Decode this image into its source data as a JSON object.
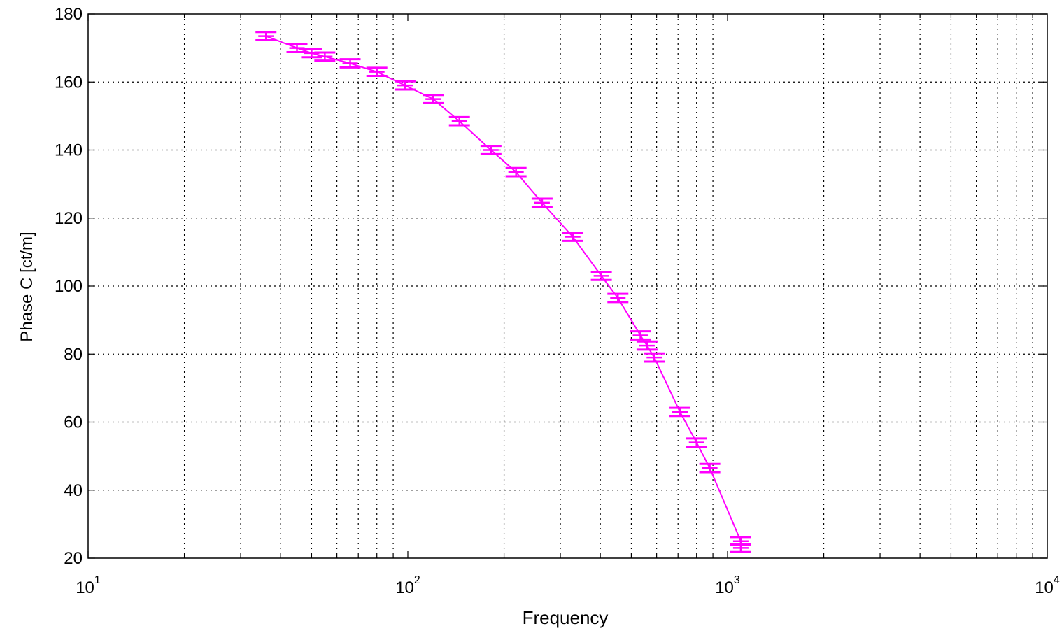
{
  "chart_data": {
    "type": "line",
    "title": "",
    "xlabel": "Frequency",
    "ylabel": "Phase C [ct/m]",
    "x_scale": "log",
    "xlim": [
      10,
      10000
    ],
    "ylim": [
      20,
      180
    ],
    "grid": true,
    "x_ticks": [
      {
        "base": "10",
        "exp": "1"
      },
      {
        "base": "10",
        "exp": "2"
      },
      {
        "base": "10",
        "exp": "3"
      },
      {
        "base": "10",
        "exp": "4"
      }
    ],
    "y_ticks": [
      "20",
      "40",
      "60",
      "80",
      "100",
      "120",
      "140",
      "160",
      "180"
    ],
    "series": [
      {
        "color": "#ff00ff",
        "error_bars": true,
        "error": 1.2,
        "x": [
          36,
          45,
          50,
          55,
          66,
          80,
          98,
          120,
          145,
          182,
          218,
          263,
          328,
          403,
          454,
          534,
          560,
          590,
          710,
          800,
          880,
          1100,
          1100
        ],
        "y": [
          173.5,
          170,
          168.5,
          167.5,
          165.5,
          163,
          159,
          155,
          148.5,
          140,
          133.5,
          124.5,
          114.5,
          103,
          96.5,
          85.5,
          82.5,
          79,
          63,
          54,
          46.5,
          25,
          23
        ]
      }
    ]
  }
}
